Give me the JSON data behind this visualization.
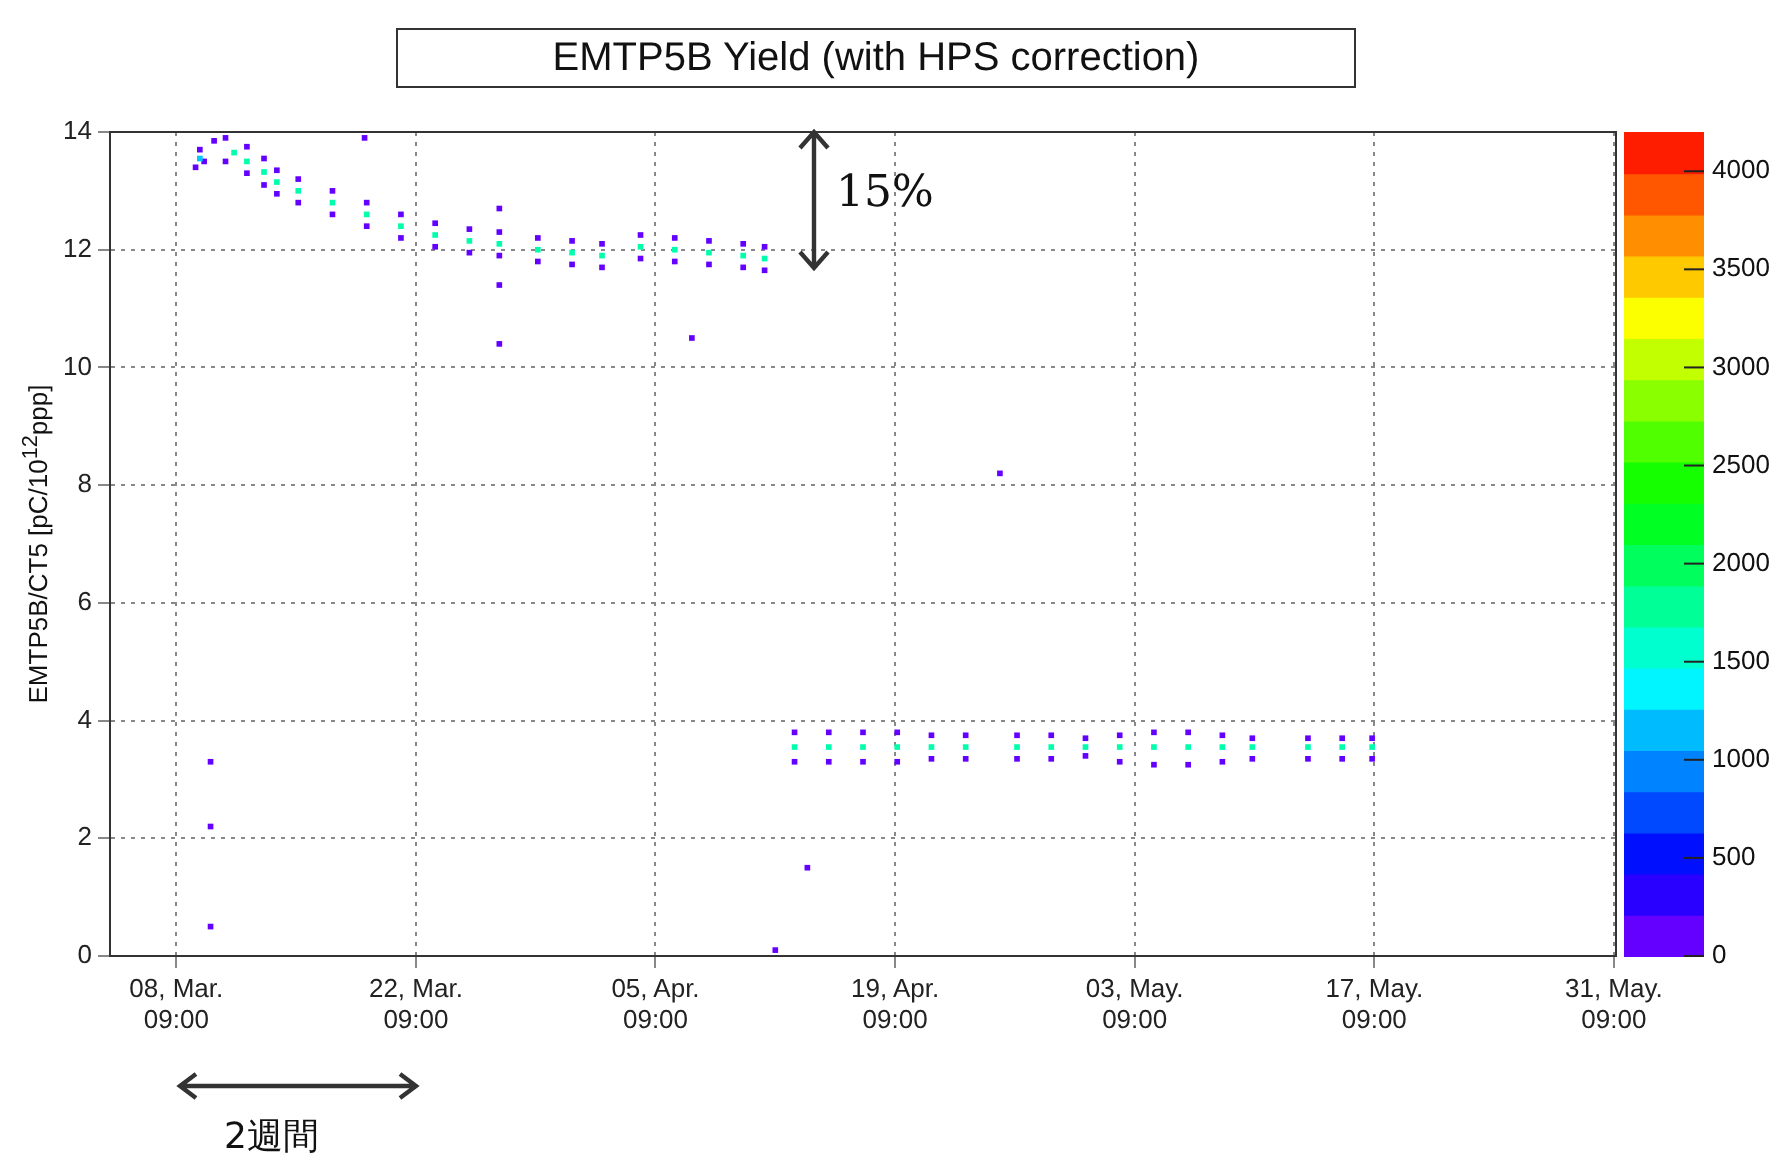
{
  "chart_data": {
    "type": "scatter",
    "title": "EMTP5B Yield (with HPS correction)",
    "ylabel": "EMTP5B/CT5 [pC/10$^{12}$ppp]",
    "annotations": [
      "15%",
      "2週間"
    ],
    "x": [
      "--03-09T12:00",
      "--03-09T18:00",
      "--03-10T00:00",
      "--03-09T18:00",
      "--03-10T14:00",
      "--03-11T06:00",
      "--03-11T06:00",
      "--03-11T18:00",
      "--03-12T12:00",
      "--03-12T12:00",
      "--03-12T12:00",
      "--03-13T12:00",
      "--03-13T12:00",
      "--03-13T12:00",
      "--03-14T06:00",
      "--03-14T06:00",
      "--03-14T06:00",
      "--03-15T12:00",
      "--03-15T12:00",
      "--03-15T12:00",
      "--03-17T12:00",
      "--03-17T12:00",
      "--03-17T12:00",
      "--03-19T12:00",
      "--03-19T12:00",
      "--03-19T12:00",
      "--03-21T12:00",
      "--03-21T12:00",
      "--03-21T12:00",
      "--03-23T12:00",
      "--03-23T12:00",
      "--03-23T12:00",
      "--03-25T12:00",
      "--03-25T12:00",
      "--03-25T12:00",
      "--03-27T06:00",
      "--03-27T06:00",
      "--03-27T06:00",
      "--03-29T12:00",
      "--03-29T12:00",
      "--03-29T12:00",
      "--03-31T12:00",
      "--03-31T12:00",
      "--03-31T12:00",
      "--04-02T06:00",
      "--04-02T06:00",
      "--04-02T06:00",
      "--03-27T06:00",
      "--03-27T06:00",
      "--04-04T12:00",
      "--04-04T12:00",
      "--04-04T12:00",
      "--04-06T12:00",
      "--04-06T12:00",
      "--04-06T12:00",
      "--04-08T12:00",
      "--04-08T12:00",
      "--04-08T12:00",
      "--04-10T12:00",
      "--04-10T12:00",
      "--04-10T12:00",
      "--04-11T18:00",
      "--04-11T18:00",
      "--04-11T18:00",
      "--04-13T12:00",
      "--04-13T12:00",
      "--04-13T12:00",
      "--04-15T12:00",
      "--04-15T12:00",
      "--04-15T12:00",
      "--04-17T12:00",
      "--04-17T12:00",
      "--04-17T12:00",
      "--04-19T12:00",
      "--04-19T12:00",
      "--04-19T12:00",
      "--04-21T12:00",
      "--04-21T12:00",
      "--04-21T12:00",
      "--04-23T12:00",
      "--04-23T12:00",
      "--04-23T12:00",
      "--04-26T12:00",
      "--04-26T12:00",
      "--04-26T12:00",
      "--04-28T12:00",
      "--04-28T12:00",
      "--04-28T12:00",
      "--04-30T12:00",
      "--04-30T12:00",
      "--04-30T12:00",
      "--05-02T12:00",
      "--05-02T12:00",
      "--05-02T12:00",
      "--05-04T12:00",
      "--05-04T12:00",
      "--05-04T12:00",
      "--05-06T12:00",
      "--05-06T12:00",
      "--05-06T12:00",
      "--05-08T12:00",
      "--05-08T12:00",
      "--05-08T12:00",
      "--05-10T06:00",
      "--05-10T06:00",
      "--05-10T06:00",
      "--05-13T12:00",
      "--05-13T12:00",
      "--05-13T12:00",
      "--05-15T12:00",
      "--05-15T12:00",
      "--05-15T12:00",
      "--05-17T06:00",
      "--05-17T06:00",
      "--05-17T06:00",
      "--03-10T09:00",
      "--03-10T09:00",
      "--03-10T09:00",
      "--03-19T09:00",
      "--03-27T06:00",
      "--04-07T12:00",
      "--04-25T12:00",
      "--04-12T09:00",
      "--04-14T06:00"
    ],
    "values": [
      13.4,
      13.7,
      13.5,
      13.55,
      13.85,
      13.9,
      13.5,
      13.65,
      13.75,
      13.3,
      13.5,
      13.55,
      13.1,
      13.32,
      13.35,
      12.95,
      13.15,
      13.2,
      12.8,
      13.0,
      13.0,
      12.6,
      12.8,
      12.8,
      12.4,
      12.6,
      12.6,
      12.2,
      12.4,
      12.45,
      12.05,
      12.25,
      12.35,
      11.95,
      12.15,
      12.3,
      11.9,
      12.1,
      12.2,
      11.8,
      12.0,
      12.15,
      11.75,
      11.95,
      12.1,
      11.7,
      11.9,
      12.7,
      11.4,
      12.25,
      11.85,
      12.05,
      12.2,
      11.8,
      12.0,
      12.15,
      11.75,
      11.95,
      12.1,
      11.7,
      11.9,
      12.05,
      11.65,
      11.85,
      3.8,
      3.3,
      3.55,
      3.8,
      3.3,
      3.55,
      3.8,
      3.3,
      3.55,
      3.8,
      3.3,
      3.55,
      3.75,
      3.35,
      3.55,
      3.75,
      3.35,
      3.55,
      3.75,
      3.35,
      3.55,
      3.75,
      3.35,
      3.55,
      3.7,
      3.4,
      3.55,
      3.75,
      3.3,
      3.55,
      3.8,
      3.25,
      3.55,
      3.8,
      3.25,
      3.55,
      3.75,
      3.3,
      3.55,
      3.7,
      3.35,
      3.55,
      3.7,
      3.35,
      3.55,
      3.7,
      3.35,
      3.55,
      3.7,
      3.35,
      3.55,
      3.3,
      2.2,
      0.5,
      13.9,
      10.4,
      10.5,
      8.2,
      0.1,
      1.5
    ],
    "cvalues": [
      100,
      100,
      100,
      1200,
      100,
      100,
      100,
      1700,
      100,
      100,
      1700,
      100,
      100,
      1700,
      100,
      100,
      1700,
      100,
      100,
      1700,
      100,
      100,
      1700,
      100,
      100,
      1700,
      100,
      100,
      1700,
      100,
      100,
      1700,
      100,
      100,
      1700,
      100,
      100,
      1700,
      100,
      100,
      1700,
      100,
      100,
      1700,
      100,
      100,
      1700,
      100,
      100,
      100,
      100,
      1700,
      100,
      100,
      1700,
      100,
      100,
      1700,
      100,
      100,
      1700,
      100,
      100,
      1700,
      100,
      100,
      1700,
      100,
      100,
      1700,
      100,
      100,
      1700,
      100,
      100,
      1700,
      100,
      100,
      1700,
      100,
      100,
      1700,
      100,
      100,
      1700,
      100,
      100,
      1700,
      100,
      100,
      1700,
      100,
      100,
      1700,
      100,
      100,
      1700,
      100,
      100,
      1700,
      100,
      100,
      1700,
      100,
      100,
      1700,
      100,
      100,
      1700,
      100,
      100,
      1700,
      100,
      100,
      1700,
      100,
      100,
      100,
      100,
      100,
      100,
      100,
      100,
      100
    ],
    "marker": "square",
    "xlim": [
      "--03-04T12:00",
      "--05-31T12:00"
    ],
    "xticks": [
      {
        "value": "--03-08T09:00",
        "label": "08, Mar.\n09:00"
      },
      {
        "value": "--03-22T09:00",
        "label": "22, Mar.\n09:00"
      },
      {
        "value": "--04-05T09:00",
        "label": "05, Apr.\n09:00"
      },
      {
        "value": "--04-19T09:00",
        "label": "19, Apr.\n09:00"
      },
      {
        "value": "--05-03T09:00",
        "label": "03, May.\n09:00"
      },
      {
        "value": "--05-17T09:00",
        "label": "17, May.\n09:00"
      },
      {
        "value": "--05-31T09:00",
        "label": "31, May.\n09:00"
      }
    ],
    "ylim": [
      0,
      14
    ],
    "yticks": [
      0,
      2,
      4,
      6,
      8,
      10,
      12,
      14
    ],
    "clim": [
      0,
      4200
    ],
    "cticks": [
      0,
      500,
      1000,
      1500,
      2000,
      2500,
      3000,
      3500,
      4000
    ],
    "grid": true
  }
}
